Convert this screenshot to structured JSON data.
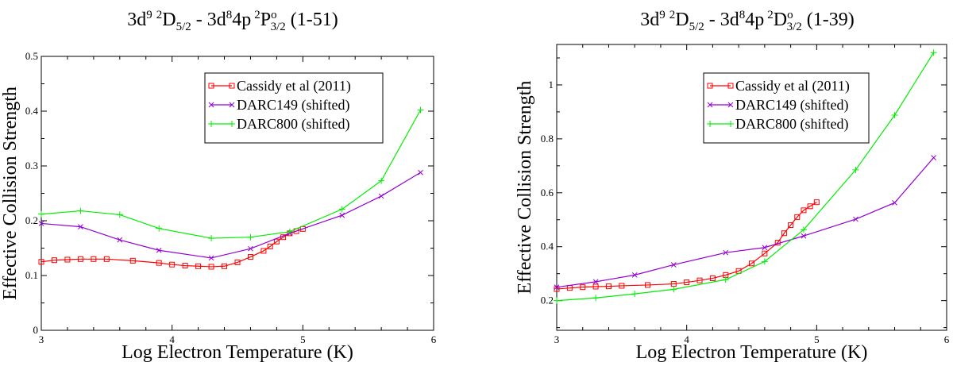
{
  "chart_data": [
    {
      "type": "line",
      "title": {
        "prefix": "3d",
        "prefix_sup": "9",
        "state1_sup": "2",
        "state1_letter": "D",
        "state1_sub": "5/2",
        "separator": " - ",
        "config2": "3d",
        "config2_sup": "8",
        "config2_rest": "4p",
        "state2_sup": "2",
        "state2_letter": "P",
        "state2_sup_o": "o",
        "state2_sub": "3/2",
        "suffix": "(1-51)"
      },
      "xlabel": "Log Electron Temperature (K)",
      "ylabel": "Effective Collision Strength",
      "xlim": [
        3,
        6
      ],
      "ylim": [
        0,
        0.5
      ],
      "xticks": [
        3,
        4,
        5,
        6
      ],
      "xtick_labels": [
        "3",
        "4",
        "5",
        "6"
      ],
      "yticks": [
        0,
        0.1,
        0.2,
        0.3,
        0.4,
        0.5
      ],
      "ytick_labels": [
        "0",
        "0.1",
        "0.2",
        "0.3",
        "0.4",
        "0.5"
      ],
      "legend": [
        "Cassidy et al (2011)",
        "DARC149 (shifted)",
        "DARC800 (shifted)"
      ],
      "series": [
        {
          "name": "Cassidy et al (2011)",
          "color": "#ff0000",
          "marker": "square",
          "x": [
            3.0,
            3.1,
            3.2,
            3.3,
            3.4,
            3.5,
            3.7,
            3.9,
            4.0,
            4.1,
            4.2,
            4.3,
            4.4,
            4.5,
            4.6,
            4.7,
            4.75,
            4.8,
            4.85,
            4.9,
            4.95,
            5.0
          ],
          "y": [
            0.125,
            0.128,
            0.129,
            0.13,
            0.13,
            0.13,
            0.127,
            0.123,
            0.12,
            0.118,
            0.117,
            0.116,
            0.117,
            0.124,
            0.134,
            0.145,
            0.153,
            0.162,
            0.17,
            0.177,
            0.181,
            0.185
          ]
        },
        {
          "name": "DARC149 (shifted)",
          "color": "#9400d3",
          "marker": "x",
          "x": [
            3.0,
            3.3,
            3.6,
            3.9,
            4.3,
            4.6,
            4.9,
            5.3,
            5.6,
            5.9
          ],
          "y": [
            0.195,
            0.189,
            0.165,
            0.146,
            0.132,
            0.149,
            0.177,
            0.21,
            0.245,
            0.288
          ]
        },
        {
          "name": "DARC800 (shifted)",
          "color": "#00ee00",
          "marker": "plus",
          "x": [
            3.0,
            3.3,
            3.6,
            3.9,
            4.3,
            4.6,
            4.9,
            5.3,
            5.6,
            5.9
          ],
          "y": [
            0.212,
            0.218,
            0.211,
            0.186,
            0.168,
            0.17,
            0.18,
            0.221,
            0.273,
            0.402
          ]
        }
      ]
    },
    {
      "type": "line",
      "title": {
        "prefix": "3d",
        "prefix_sup": "9",
        "state1_sup": "2",
        "state1_letter": "D",
        "state1_sub": "5/2",
        "separator": " - ",
        "config2": "3d",
        "config2_sup": "8",
        "config2_rest": "4p",
        "state2_sup": "2",
        "state2_letter": "D",
        "state2_sup_o": "o",
        "state2_sub": "3/2",
        "suffix": "(1-39)"
      },
      "xlabel": "Log Electron Temperature (K)",
      "ylabel": "Effective Collision Strength",
      "xlim": [
        3,
        6
      ],
      "ylim": [
        0.09,
        1.15
      ],
      "xticks": [
        3,
        4,
        5,
        6
      ],
      "xtick_labels": [
        "3",
        "4",
        "5",
        "6"
      ],
      "yticks": [
        0.2,
        0.4,
        0.6,
        0.8,
        1.0
      ],
      "ytick_labels": [
        "0.2",
        "0.4",
        "0.6",
        "0.8",
        "1"
      ],
      "legend": [
        "Cassidy et al (2011)",
        "DARC149 (shifted)",
        "DARC800 (shifted)"
      ],
      "series": [
        {
          "name": "Cassidy et al (2011)",
          "color": "#ff0000",
          "marker": "square",
          "x": [
            3.0,
            3.1,
            3.2,
            3.3,
            3.4,
            3.5,
            3.7,
            3.9,
            4.0,
            4.1,
            4.2,
            4.3,
            4.4,
            4.5,
            4.6,
            4.7,
            4.75,
            4.8,
            4.85,
            4.9,
            4.95,
            5.0
          ],
          "y": [
            0.243,
            0.247,
            0.25,
            0.252,
            0.253,
            0.255,
            0.258,
            0.262,
            0.268,
            0.275,
            0.283,
            0.295,
            0.31,
            0.338,
            0.375,
            0.415,
            0.45,
            0.48,
            0.51,
            0.535,
            0.55,
            0.565
          ]
        },
        {
          "name": "DARC149 (shifted)",
          "color": "#9400d3",
          "marker": "x",
          "x": [
            3.0,
            3.3,
            3.6,
            3.9,
            4.3,
            4.6,
            4.9,
            5.3,
            5.6,
            5.9
          ],
          "y": [
            0.25,
            0.27,
            0.295,
            0.333,
            0.378,
            0.397,
            0.44,
            0.502,
            0.563,
            0.73
          ]
        },
        {
          "name": "DARC800 (shifted)",
          "color": "#00ee00",
          "marker": "plus",
          "x": [
            3.0,
            3.3,
            3.6,
            3.9,
            4.3,
            4.6,
            4.9,
            5.3,
            5.6,
            5.9
          ],
          "y": [
            0.2,
            0.21,
            0.225,
            0.242,
            0.278,
            0.345,
            0.463,
            0.685,
            0.888,
            1.12
          ]
        }
      ]
    }
  ]
}
